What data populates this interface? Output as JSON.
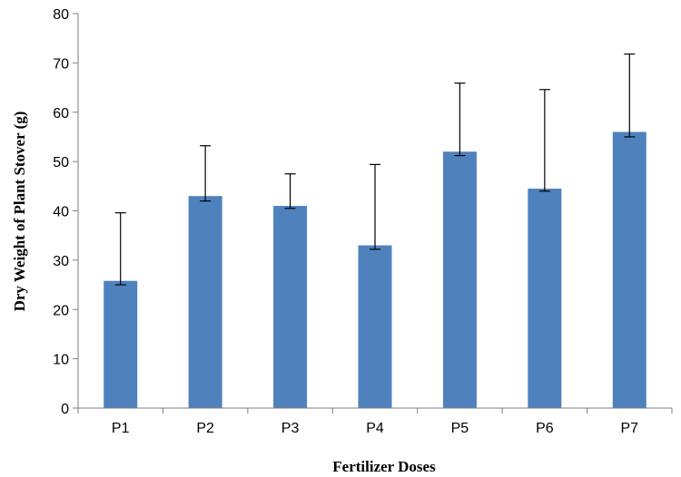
{
  "chart_data": {
    "type": "bar",
    "title": "",
    "xlabel": "Fertilizer Doses",
    "ylabel": "Dry Weight of Plant Stover (g)",
    "categories": [
      "P1",
      "P2",
      "P3",
      "P4",
      "P5",
      "P6",
      "P7"
    ],
    "values": [
      25.8,
      43.0,
      41.0,
      33.0,
      52.0,
      44.5,
      56.0
    ],
    "error_upper": [
      39.6,
      53.2,
      47.5,
      49.4,
      65.9,
      64.6,
      71.8
    ],
    "error_lower": [
      25.0,
      42.0,
      40.5,
      32.2,
      51.2,
      44.0,
      55.0
    ],
    "ylim": [
      0,
      80
    ],
    "yticks": [
      0,
      10,
      20,
      30,
      40,
      50,
      60,
      70,
      80
    ],
    "grid": false,
    "legend": "none",
    "colors": {
      "bar": "#4F81BD",
      "axis": "#7F7F7F",
      "error_bar": "#000000"
    }
  }
}
